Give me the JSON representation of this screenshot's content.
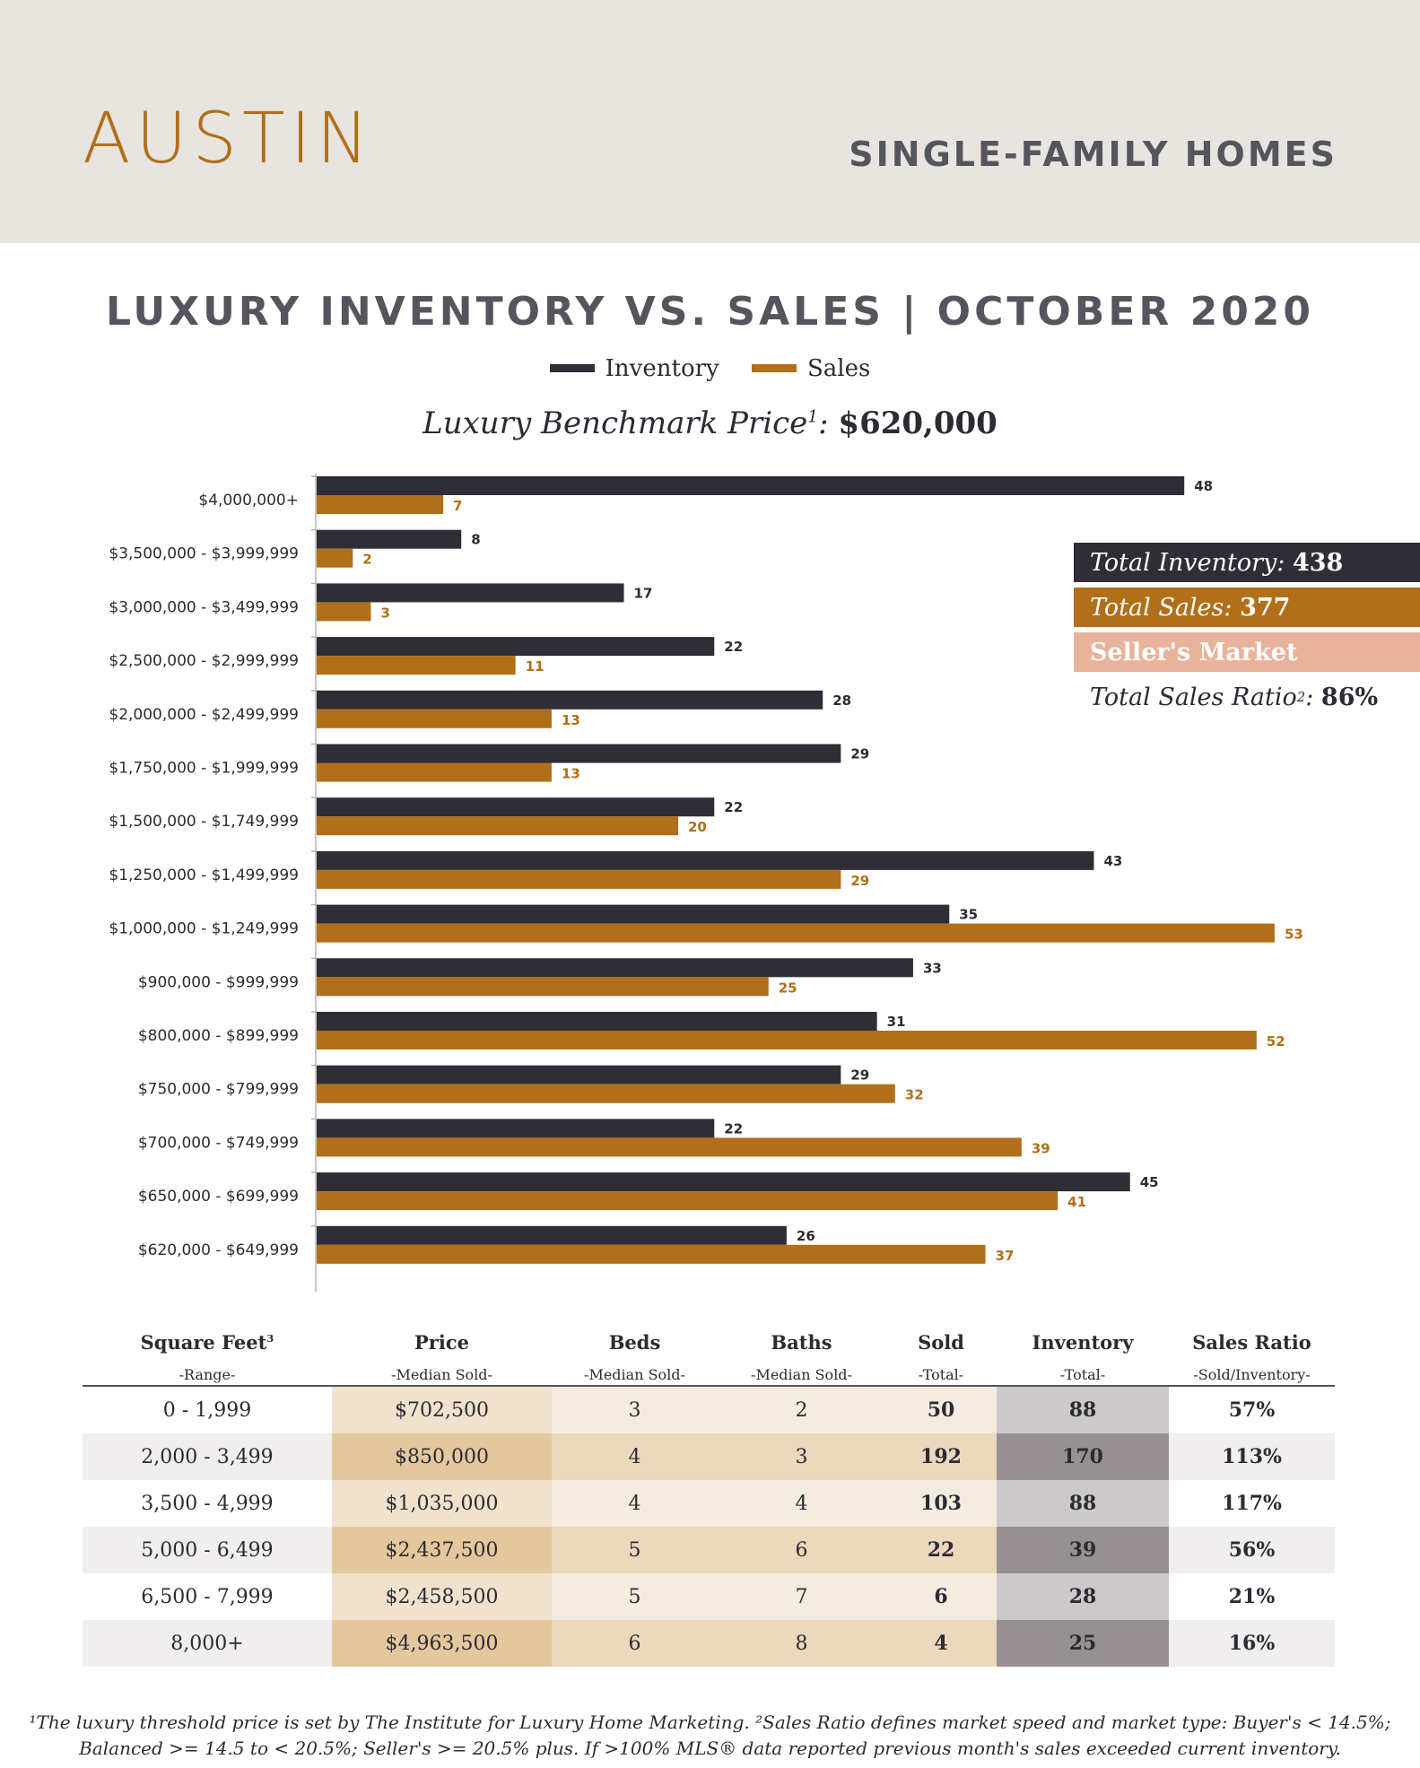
{
  "header": {
    "city": "AUSTIN",
    "subtitle": "SINGLE-FAMILY HOMES"
  },
  "colors": {
    "inventory": "#2f2e36",
    "sales": "#b06f18",
    "market_badge": "#e8b39a",
    "header_bg": "#e8e4df"
  },
  "benchmark": {
    "label": "Luxury Benchmark Price",
    "sup": "1",
    "value": "$620,000"
  },
  "chart_data": {
    "type": "bar",
    "orientation": "horizontal",
    "title": "LUXURY INVENTORY VS. SALES | OCTOBER 2020",
    "categories": [
      "$4,000,000+",
      "$3,500,000 - $3,999,999",
      "$3,000,000 - $3,499,999",
      "$2,500,000 - $2,999,999",
      "$2,000,000 - $2,499,999",
      "$1,750,000 - $1,999,999",
      "$1,500,000 - $1,749,999",
      "$1,250,000 - $1,499,999",
      "$1,000,000 - $1,249,999",
      "$900,000 - $999,999",
      "$800,000 - $899,999",
      "$750,000 - $799,999",
      "$700,000 - $749,999",
      "$650,000 - $699,999",
      "$620,000 - $649,999"
    ],
    "series": [
      {
        "name": "Inventory",
        "values": [
          48,
          8,
          17,
          22,
          28,
          29,
          22,
          43,
          35,
          33,
          31,
          29,
          22,
          45,
          26
        ]
      },
      {
        "name": "Sales",
        "values": [
          7,
          2,
          3,
          11,
          13,
          13,
          20,
          29,
          53,
          25,
          52,
          32,
          39,
          41,
          37
        ]
      }
    ],
    "xlim": [
      0,
      53
    ],
    "legend": "top-center",
    "grid": false
  },
  "summary": {
    "total_inventory_label": "Total Inventory:",
    "total_inventory_value": "438",
    "total_sales_label": "Total Sales:",
    "total_sales_value": "377",
    "market": "Seller's Market",
    "ratio_label": "Total Sales Ratio",
    "ratio_sup": "2",
    "ratio_colon": ":",
    "ratio_value": "86%"
  },
  "table": {
    "headers": [
      {
        "title": "Square Feet",
        "sup": "3",
        "sub": "-Range-"
      },
      {
        "title": "Price",
        "sup": "",
        "sub": "-Median Sold-"
      },
      {
        "title": "Beds",
        "sup": "",
        "sub": "-Median Sold-"
      },
      {
        "title": "Baths",
        "sup": "",
        "sub": "-Median Sold-"
      },
      {
        "title": "Sold",
        "sup": "",
        "sub": "-Total-"
      },
      {
        "title": "Inventory",
        "sup": "",
        "sub": "-Total-"
      },
      {
        "title": "Sales Ratio",
        "sup": "",
        "sub": "-Sold/Inventory-"
      }
    ],
    "rows": [
      [
        "0 - 1,999",
        "$702,500",
        "3",
        "2",
        "50",
        "88",
        "57%"
      ],
      [
        "2,000 - 3,499",
        "$850,000",
        "4",
        "3",
        "192",
        "170",
        "113%"
      ],
      [
        "3,500 - 4,999",
        "$1,035,000",
        "4",
        "4",
        "103",
        "88",
        "117%"
      ],
      [
        "5,000 - 6,499",
        "$2,437,500",
        "5",
        "6",
        "22",
        "39",
        "56%"
      ],
      [
        "6,500 - 7,999",
        "$2,458,500",
        "5",
        "7",
        "6",
        "28",
        "21%"
      ],
      [
        "8,000+",
        "$4,963,500",
        "6",
        "8",
        "4",
        "25",
        "16%"
      ]
    ]
  },
  "footnote": {
    "line1": "¹The luxury threshold price is set by The Institute for Luxury Home Marketing. ²Sales Ratio defines market speed and market type: Buyer's < 14.5%;",
    "line2": "Balanced >= 14.5 to < 20.5%; Seller's >= 20.5% plus. If >100% MLS® data reported previous month's sales exceeded current inventory."
  }
}
